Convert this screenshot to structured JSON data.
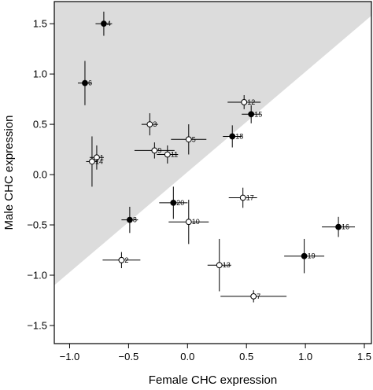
{
  "chart_data": {
    "type": "scatter",
    "xlabel": "Female CHC expression",
    "ylabel": "Male CHC expression",
    "xlim": [
      -1.13,
      1.56
    ],
    "ylim": [
      -1.68,
      1.72
    ],
    "xticks": [
      -1.0,
      -0.5,
      0.0,
      0.5,
      1.0,
      1.5
    ],
    "xtick_labels": [
      "−1.0",
      "−0.5",
      "0.0",
      "0.5",
      "1.0",
      "1.5"
    ],
    "yticks": [
      -1.5,
      -1.0,
      -0.5,
      0.0,
      0.5,
      1.0,
      1.5
    ],
    "ytick_labels": [
      "−1.5",
      "−1.0",
      "−0.5",
      "0.0",
      "0.5",
      "1.0",
      "1.5"
    ],
    "grid": false,
    "legend": "none",
    "shaded_region": {
      "description": "area above the line",
      "line_points": [
        [
          -1.13,
          -1.1
        ],
        [
          1.56,
          1.58
        ]
      ],
      "color": "#dcdcdc"
    },
    "colors": {
      "filled": "#000000",
      "open": "#ffffff",
      "shade": "#dcdcdc"
    },
    "points": [
      {
        "label": "1",
        "x": -0.77,
        "y": 0.17,
        "xerr": 0.06,
        "yerr": 0.12,
        "filled": false
      },
      {
        "label": "2",
        "x": -0.56,
        "y": -0.85,
        "xerr": 0.16,
        "yerr": 0.08,
        "filled": false
      },
      {
        "label": "3",
        "x": -0.32,
        "y": 0.5,
        "xerr": 0.07,
        "yerr": 0.11,
        "filled": false
      },
      {
        "label": "4",
        "x": -0.71,
        "y": 1.5,
        "xerr": 0.07,
        "yerr": 0.12,
        "filled": true
      },
      {
        "label": "5",
        "x": 0.01,
        "y": 0.35,
        "xerr": 0.15,
        "yerr": 0.15,
        "filled": false
      },
      {
        "label": "6",
        "x": -0.87,
        "y": 0.91,
        "xerr": 0.06,
        "yerr": 0.22,
        "filled": true
      },
      {
        "label": "7",
        "x": 0.56,
        "y": -1.21,
        "xerr": 0.28,
        "yerr": 0.06,
        "filled": false
      },
      {
        "label": "8",
        "x": -0.49,
        "y": -0.45,
        "xerr": 0.07,
        "yerr": 0.13,
        "filled": true
      },
      {
        "label": "9",
        "x": -0.28,
        "y": 0.24,
        "xerr": 0.17,
        "yerr": 0.08,
        "filled": false
      },
      {
        "label": "10",
        "x": 0.01,
        "y": -0.47,
        "xerr": 0.17,
        "yerr": 0.22,
        "filled": false
      },
      {
        "label": "11",
        "x": -0.17,
        "y": 0.2,
        "xerr": 0.09,
        "yerr": 0.09,
        "filled": false
      },
      {
        "label": "12",
        "x": 0.48,
        "y": 0.72,
        "xerr": 0.14,
        "yerr": 0.07,
        "filled": false
      },
      {
        "label": "13",
        "x": 0.27,
        "y": -0.9,
        "xerr": 0.1,
        "yerr": 0.26,
        "filled": false
      },
      {
        "label": "14",
        "x": -0.81,
        "y": 0.13,
        "xerr": 0.05,
        "yerr": 0.25,
        "filled": false
      },
      {
        "label": "15",
        "x": 0.54,
        "y": 0.6,
        "xerr": 0.08,
        "yerr": 0.09,
        "filled": true
      },
      {
        "label": "16",
        "x": 1.28,
        "y": -0.52,
        "xerr": 0.14,
        "yerr": 0.1,
        "filled": true
      },
      {
        "label": "17",
        "x": 0.47,
        "y": -0.23,
        "xerr": 0.12,
        "yerr": 0.1,
        "filled": false
      },
      {
        "label": "18",
        "x": 0.38,
        "y": 0.38,
        "xerr": 0.08,
        "yerr": 0.11,
        "filled": true
      },
      {
        "label": "19",
        "x": 0.99,
        "y": -0.81,
        "xerr": 0.17,
        "yerr": 0.17,
        "filled": true
      },
      {
        "label": "20",
        "x": -0.12,
        "y": -0.28,
        "xerr": 0.12,
        "yerr": 0.16,
        "filled": true
      }
    ]
  }
}
